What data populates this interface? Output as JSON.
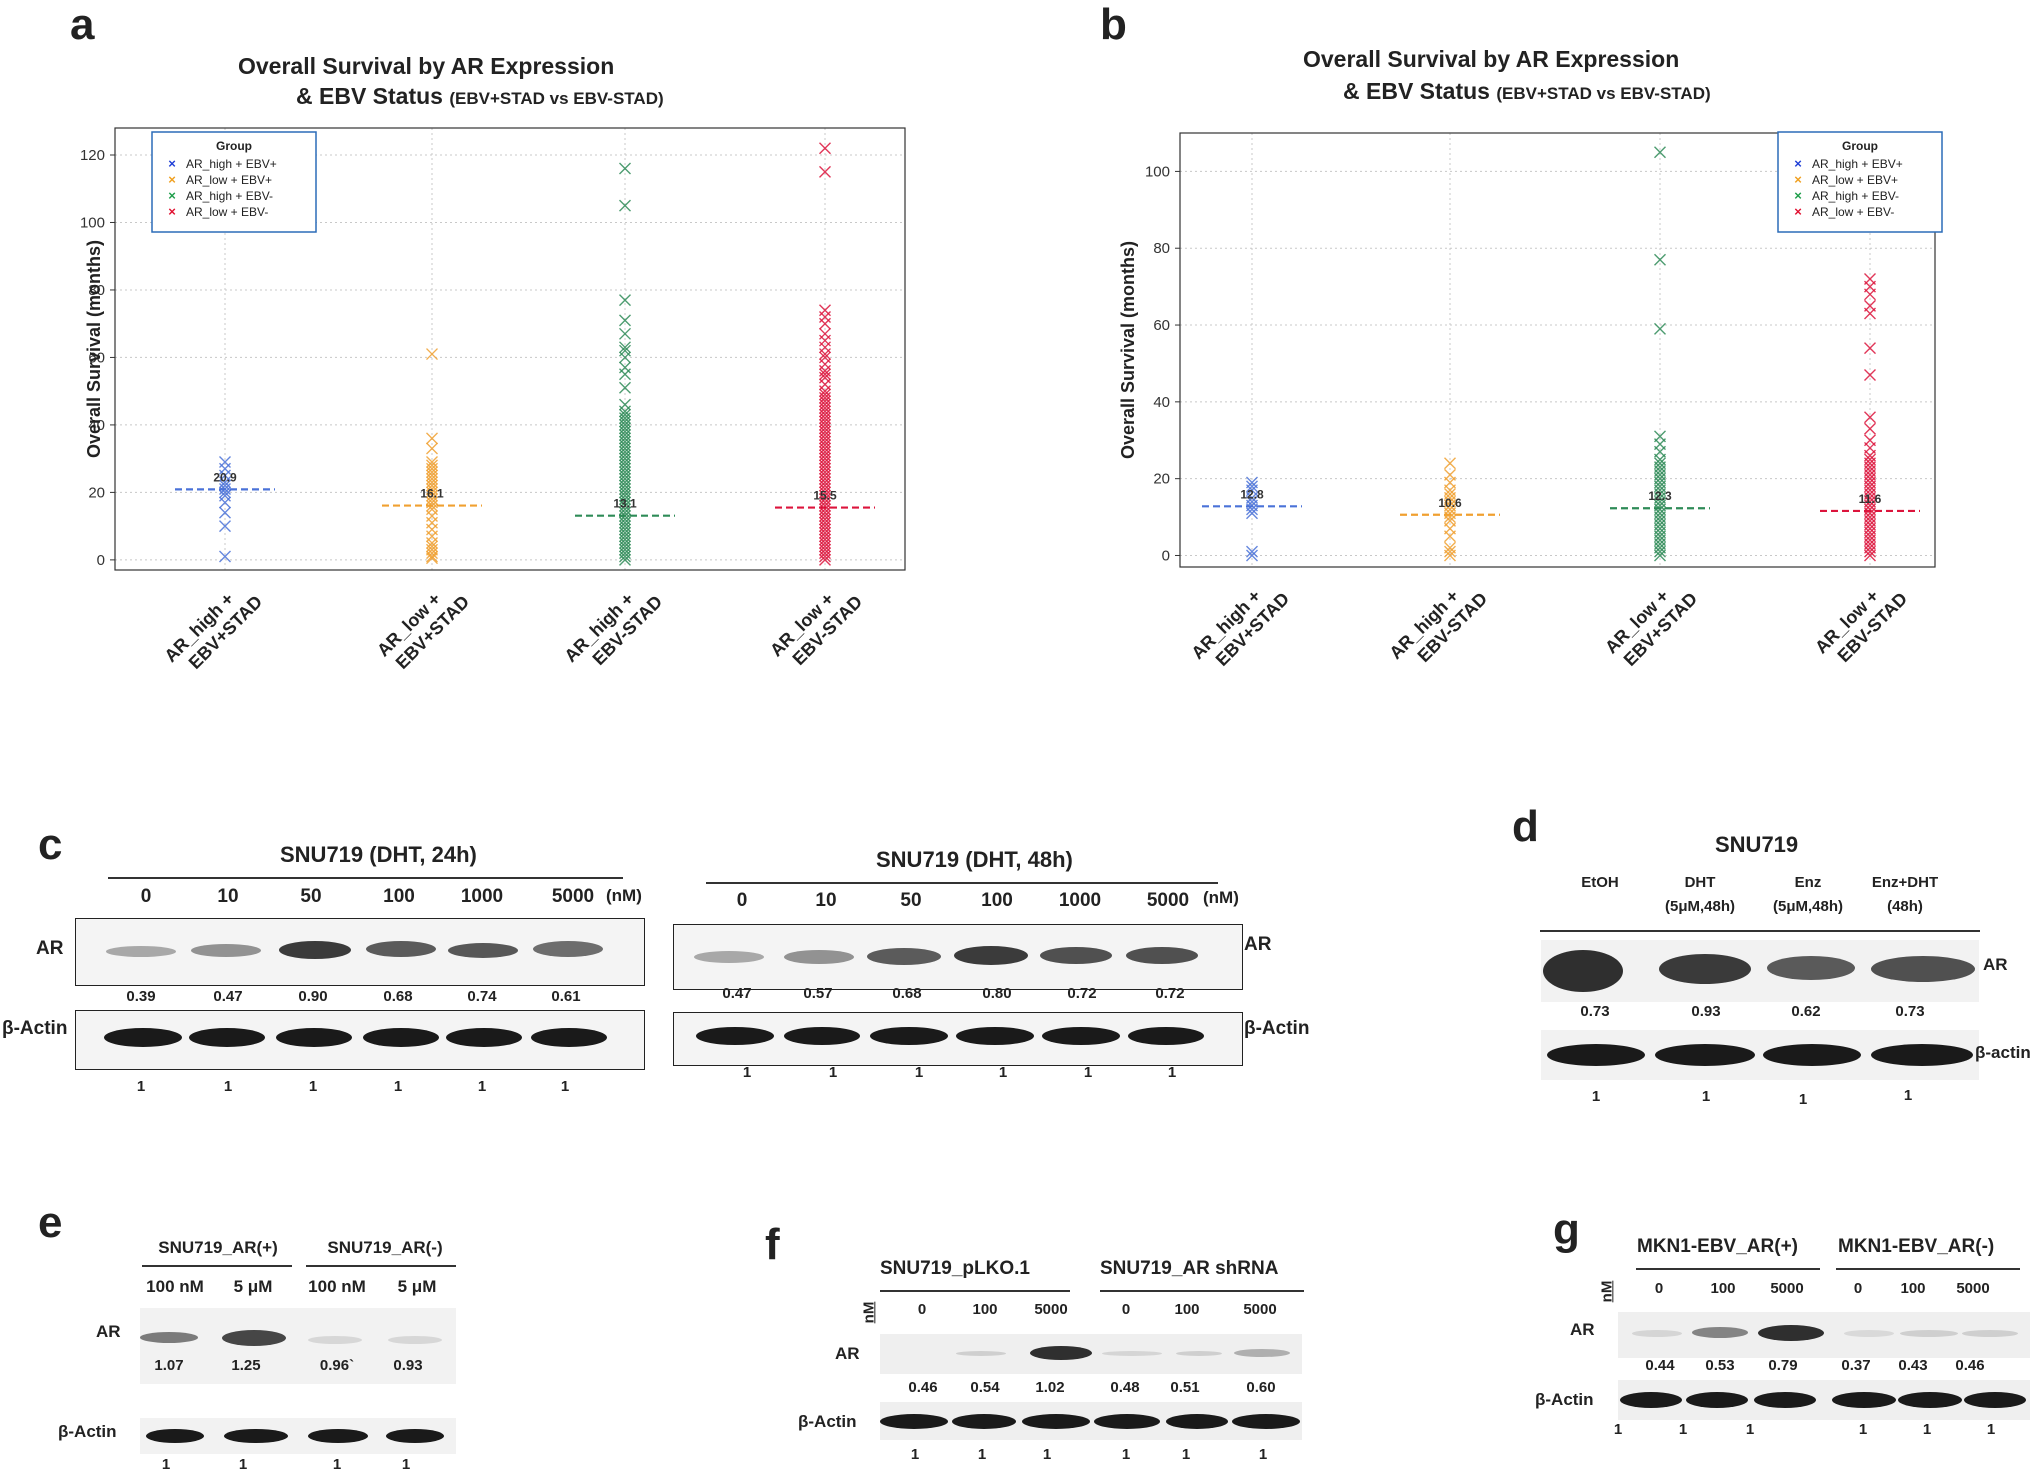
{
  "panel_labels": {
    "a": "a",
    "b": "b",
    "c": "c",
    "d": "d",
    "e": "e",
    "f": "f",
    "g": "g"
  },
  "chart_data": [
    {
      "type": "scatter",
      "panel": "a",
      "title_line1": "Overall Survival by AR Expression",
      "title_line2": "& EBV Status",
      "title_sub": "(EBV+STAD vs EBV-STAD)",
      "ylabel": "Overall Survival (months)",
      "ylim": [
        -3,
        128
      ],
      "yticks": [
        0,
        20,
        40,
        60,
        80,
        100,
        120
      ],
      "legend_title": "Group",
      "legend": [
        {
          "label": "AR_high + EBV+",
          "color": "#1f3fd6"
        },
        {
          "label": "AR_low + EBV+",
          "color": "#f0a020"
        },
        {
          "label": "AR_high + EBV-",
          "color": "#1e9e4a"
        },
        {
          "label": "AR_low + EBV-",
          "color": "#e01030"
        }
      ],
      "categories": [
        {
          "line1": "AR_high +",
          "line2": "EBV+STAD",
          "color": "#4a72d8",
          "median": 20.9,
          "median_label": "20.9",
          "values": [
            1,
            10,
            14,
            17,
            19,
            20,
            21,
            22,
            23,
            25,
            27,
            29
          ]
        },
        {
          "line1": "AR_low +",
          "line2": "EBV+STAD",
          "color": "#f0a030",
          "median": 16.1,
          "median_label": "16.1",
          "values": [
            0.5,
            1,
            2,
            3,
            4,
            5,
            7,
            9,
            11,
            13,
            15,
            16,
            17,
            18,
            19,
            20,
            21,
            22,
            23,
            24,
            25,
            26,
            27,
            28,
            29,
            33,
            36,
            61
          ]
        },
        {
          "line1": "AR_high +",
          "line2": "EBV-STAD",
          "color": "#2e8b57",
          "median": 13.1,
          "median_label": "13.1",
          "values": [
            0,
            1,
            2,
            3,
            4,
            5,
            6,
            7,
            8,
            9,
            10,
            11,
            12,
            13,
            14,
            15,
            16,
            17,
            18,
            19,
            20,
            21,
            22,
            23,
            24,
            25,
            26,
            27,
            28,
            29,
            30,
            31,
            32,
            33,
            34,
            35,
            36,
            37,
            38,
            39,
            40,
            41,
            42,
            43,
            44,
            46,
            51,
            55,
            57,
            60,
            62,
            63,
            67,
            71,
            77,
            105,
            116
          ]
        },
        {
          "line1": "AR_low +",
          "line2": "EBV-STAD",
          "color": "#dc143c",
          "median": 15.5,
          "median_label": "15.5",
          "values": [
            0,
            1,
            2,
            3,
            4,
            5,
            6,
            7,
            8,
            9,
            10,
            11,
            12,
            13,
            14,
            15,
            16,
            17,
            18,
            19,
            20,
            21,
            22,
            23,
            24,
            25,
            26,
            27,
            28,
            29,
            30,
            31,
            32,
            33,
            34,
            35,
            36,
            37,
            38,
            39,
            40,
            41,
            42,
            43,
            44,
            45,
            46,
            47,
            48,
            49,
            50,
            52,
            54,
            55,
            56,
            58,
            60,
            61,
            63,
            65,
            67,
            70,
            72,
            74,
            115,
            122
          ]
        }
      ]
    },
    {
      "type": "scatter",
      "panel": "b",
      "title_line1": "Overall Survival by AR Expression",
      "title_line2": "& EBV Status",
      "title_sub": "(EBV+STAD vs EBV-STAD)",
      "ylabel": "Overall Survival (months)",
      "ylim": [
        -3,
        110
      ],
      "yticks": [
        0,
        20,
        40,
        60,
        80,
        100
      ],
      "legend_title": "Group",
      "legend": [
        {
          "label": "AR_high + EBV+",
          "color": "#1f3fd6"
        },
        {
          "label": "AR_low + EBV+",
          "color": "#f0a020"
        },
        {
          "label": "AR_high + EBV-",
          "color": "#1e9e4a"
        },
        {
          "label": "AR_low + EBV-",
          "color": "#e01030"
        }
      ],
      "categories": [
        {
          "line1": "AR_high +",
          "line2": "EBV+STAD",
          "color": "#4a72d8",
          "median": 12.8,
          "median_label": "12.8",
          "values": [
            0,
            1,
            11,
            12,
            13,
            14,
            15,
            17,
            18,
            19
          ]
        },
        {
          "line1": "AR_high +",
          "line2": "EBV-STAD",
          "color": "#f0a030",
          "median": 10.6,
          "median_label": "10.6",
          "values": [
            0,
            1,
            2,
            5,
            7,
            9,
            10,
            11,
            12,
            13,
            14,
            15,
            16,
            17,
            19,
            21,
            24
          ]
        },
        {
          "line1": "AR_low +",
          "line2": "EBV+STAD",
          "color": "#2e8b57",
          "median": 12.3,
          "median_label": "12.3",
          "values": [
            0,
            1,
            2,
            3,
            4,
            5,
            6,
            7,
            8,
            9,
            10,
            11,
            12,
            13,
            14,
            15,
            16,
            17,
            18,
            19,
            20,
            21,
            22,
            23,
            24,
            25,
            27,
            29,
            31,
            59,
            77,
            105
          ]
        },
        {
          "line1": "AR_low +",
          "line2": "EBV-STAD",
          "color": "#dc143c",
          "median": 11.6,
          "median_label": "11.6",
          "values": [
            0,
            1,
            2,
            3,
            4,
            5,
            6,
            7,
            8,
            9,
            10,
            11,
            12,
            13,
            14,
            15,
            16,
            17,
            18,
            19,
            20,
            21,
            22,
            23,
            24,
            25,
            26,
            28,
            30,
            33,
            36,
            47,
            54,
            63,
            65,
            68,
            70,
            72
          ]
        }
      ]
    }
  ],
  "panel_c": {
    "left": {
      "title": "SNU719 (DHT, 24h)",
      "unit": "(nM)",
      "doses": [
        "0",
        "10",
        "50",
        "100",
        "1000",
        "5000"
      ],
      "ar_label": "AR",
      "ar_values": [
        "0.39",
        "0.47",
        "0.90",
        "0.68",
        "0.74",
        "0.61"
      ],
      "actin_label": "β-Actin",
      "actin_values": [
        "1",
        "1",
        "1",
        "1",
        "1",
        "1"
      ]
    },
    "right": {
      "title": "SNU719 (DHT, 48h)",
      "unit": "(nM)",
      "doses": [
        "0",
        "10",
        "50",
        "100",
        "1000",
        "5000"
      ],
      "ar_label": "AR",
      "ar_values": [
        "0.47",
        "0.57",
        "0.68",
        "0.80",
        "0.72",
        "0.72"
      ],
      "actin_label": "β-Actin",
      "actin_values": [
        "1",
        "1",
        "1",
        "1",
        "1",
        "1"
      ]
    }
  },
  "panel_d": {
    "title": "SNU719",
    "lanes": [
      {
        "line1": "EtOH",
        "line2": ""
      },
      {
        "line1": "DHT",
        "line2": "(5μM,48h)"
      },
      {
        "line1": "Enz",
        "line2": "(5μM,48h)"
      },
      {
        "line1": "Enz+DHT",
        "line2": "(48h)"
      }
    ],
    "ar_label": "AR",
    "ar_values": [
      "0.73",
      "0.93",
      "0.62",
      "0.73"
    ],
    "actin_label": "β-actin",
    "actin_values": [
      "1",
      "1",
      "1",
      "1"
    ]
  },
  "panel_e": {
    "groups": [
      "SNU719_AR(+)",
      "SNU719_AR(-)"
    ],
    "doses": [
      "100  nM",
      "5 μM",
      "100  nM",
      "5 μM"
    ],
    "ar_label": "AR",
    "ar_values": [
      "1.07",
      "1.25",
      "0.96`",
      "0.93"
    ],
    "actin_label": "β-Actin",
    "actin_values": [
      "1",
      "1",
      "1",
      "1"
    ]
  },
  "panel_f": {
    "groups": [
      "SNU719_pLKO.1",
      "SNU719_AR shRNA"
    ],
    "unit": "nM",
    "doses": [
      "0",
      "100",
      "5000",
      "0",
      "100",
      "5000"
    ],
    "ar_label": "AR",
    "ar_values": [
      "0.46",
      "0.54",
      "1.02",
      "0.48",
      "0.51",
      "0.60"
    ],
    "actin_label": "β-Actin",
    "actin_values": [
      "1",
      "1",
      "1",
      "1",
      "1",
      "1"
    ]
  },
  "panel_g": {
    "groups": [
      "MKN1-EBV_AR(+)",
      "MKN1-EBV_AR(-)"
    ],
    "unit": "nM",
    "doses": [
      "0",
      "100",
      "5000",
      "0",
      "100",
      "5000"
    ],
    "ar_label": "AR",
    "ar_values": [
      "0.44",
      "0.53",
      "0.79",
      "0.37",
      "0.43",
      "0.46"
    ],
    "actin_label": "β-Actin",
    "actin_values": [
      "1",
      "1",
      "1",
      "1",
      "1",
      "1"
    ]
  }
}
